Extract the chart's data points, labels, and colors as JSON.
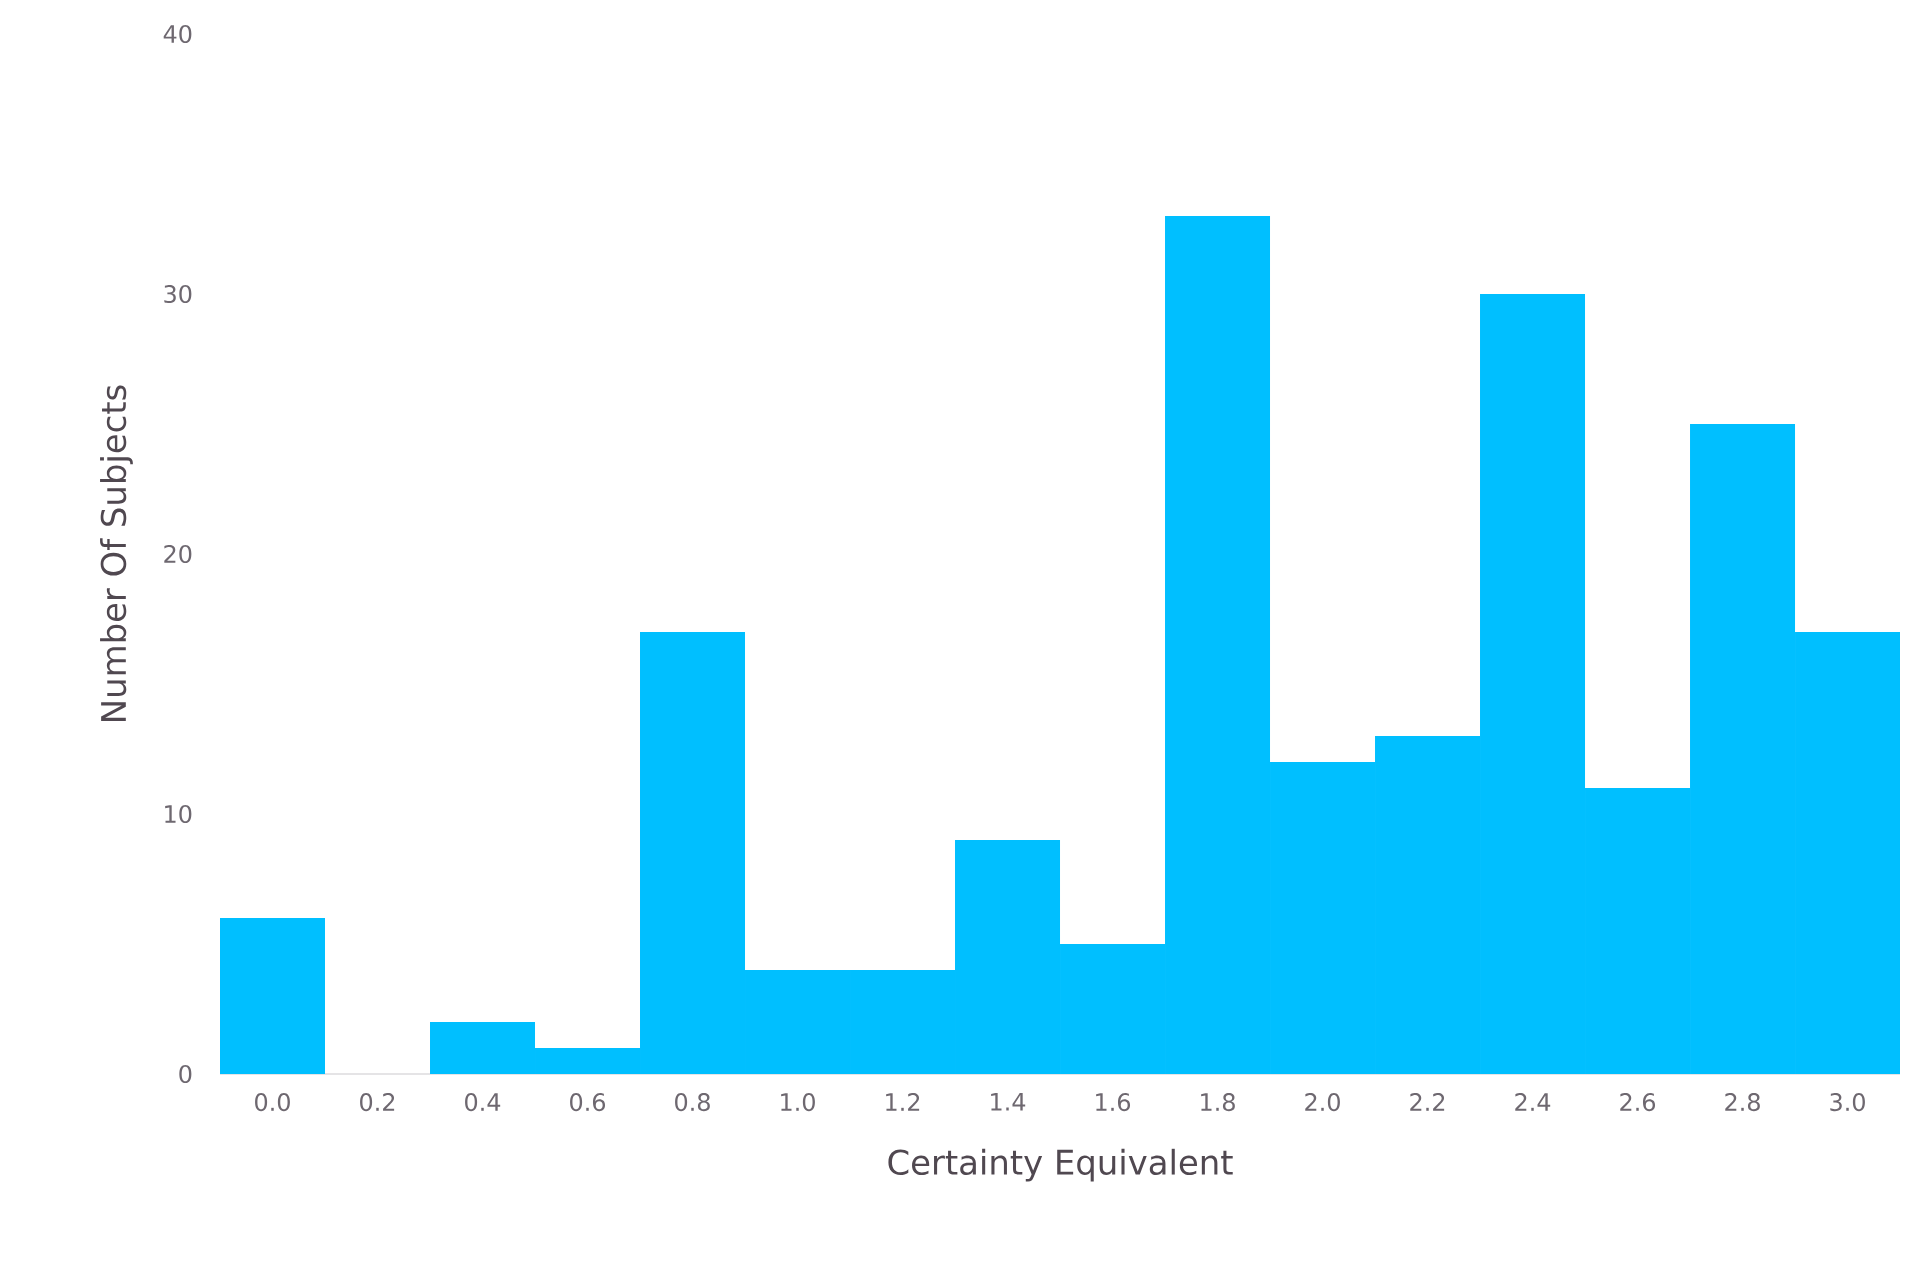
{
  "chart_data": {
    "type": "histogram",
    "xlabel": "Certainty Equivalent",
    "ylabel": "Number Of Subjects",
    "bins": [
      -0.1,
      0.1,
      0.3,
      0.5,
      0.7,
      0.9,
      1.1,
      1.3,
      1.5,
      1.7,
      1.9,
      2.1,
      2.3,
      2.5,
      2.7,
      2.9,
      3.1
    ],
    "values": [
      6,
      0,
      2,
      1,
      17,
      4,
      4,
      9,
      5,
      33,
      12,
      13,
      30,
      11,
      25,
      17
    ],
    "color": "#00bfff",
    "xlim": [
      -0.1,
      3.1
    ],
    "ylim": [
      0,
      40
    ],
    "xticks": [
      {
        "value": 0,
        "label": "0.0"
      },
      {
        "value": 0.2,
        "label": "0.2"
      },
      {
        "value": 0.4,
        "label": "0.4"
      },
      {
        "value": 0.6,
        "label": "0.6"
      },
      {
        "value": 0.8,
        "label": "0.8"
      },
      {
        "value": 1,
        "label": "1.0"
      },
      {
        "value": 1.2,
        "label": "1.2"
      },
      {
        "value": 1.4,
        "label": "1.4"
      },
      {
        "value": 1.6,
        "label": "1.6"
      },
      {
        "value": 1.8,
        "label": "1.8"
      },
      {
        "value": 2,
        "label": "2.0"
      },
      {
        "value": 2.2,
        "label": "2.2"
      },
      {
        "value": 2.4,
        "label": "2.4"
      },
      {
        "value": 2.6,
        "label": "2.6"
      },
      {
        "value": 2.8,
        "label": "2.8"
      },
      {
        "value": 3,
        "label": "3.0"
      }
    ],
    "yticks": [
      0,
      10,
      20,
      30,
      40
    ]
  }
}
